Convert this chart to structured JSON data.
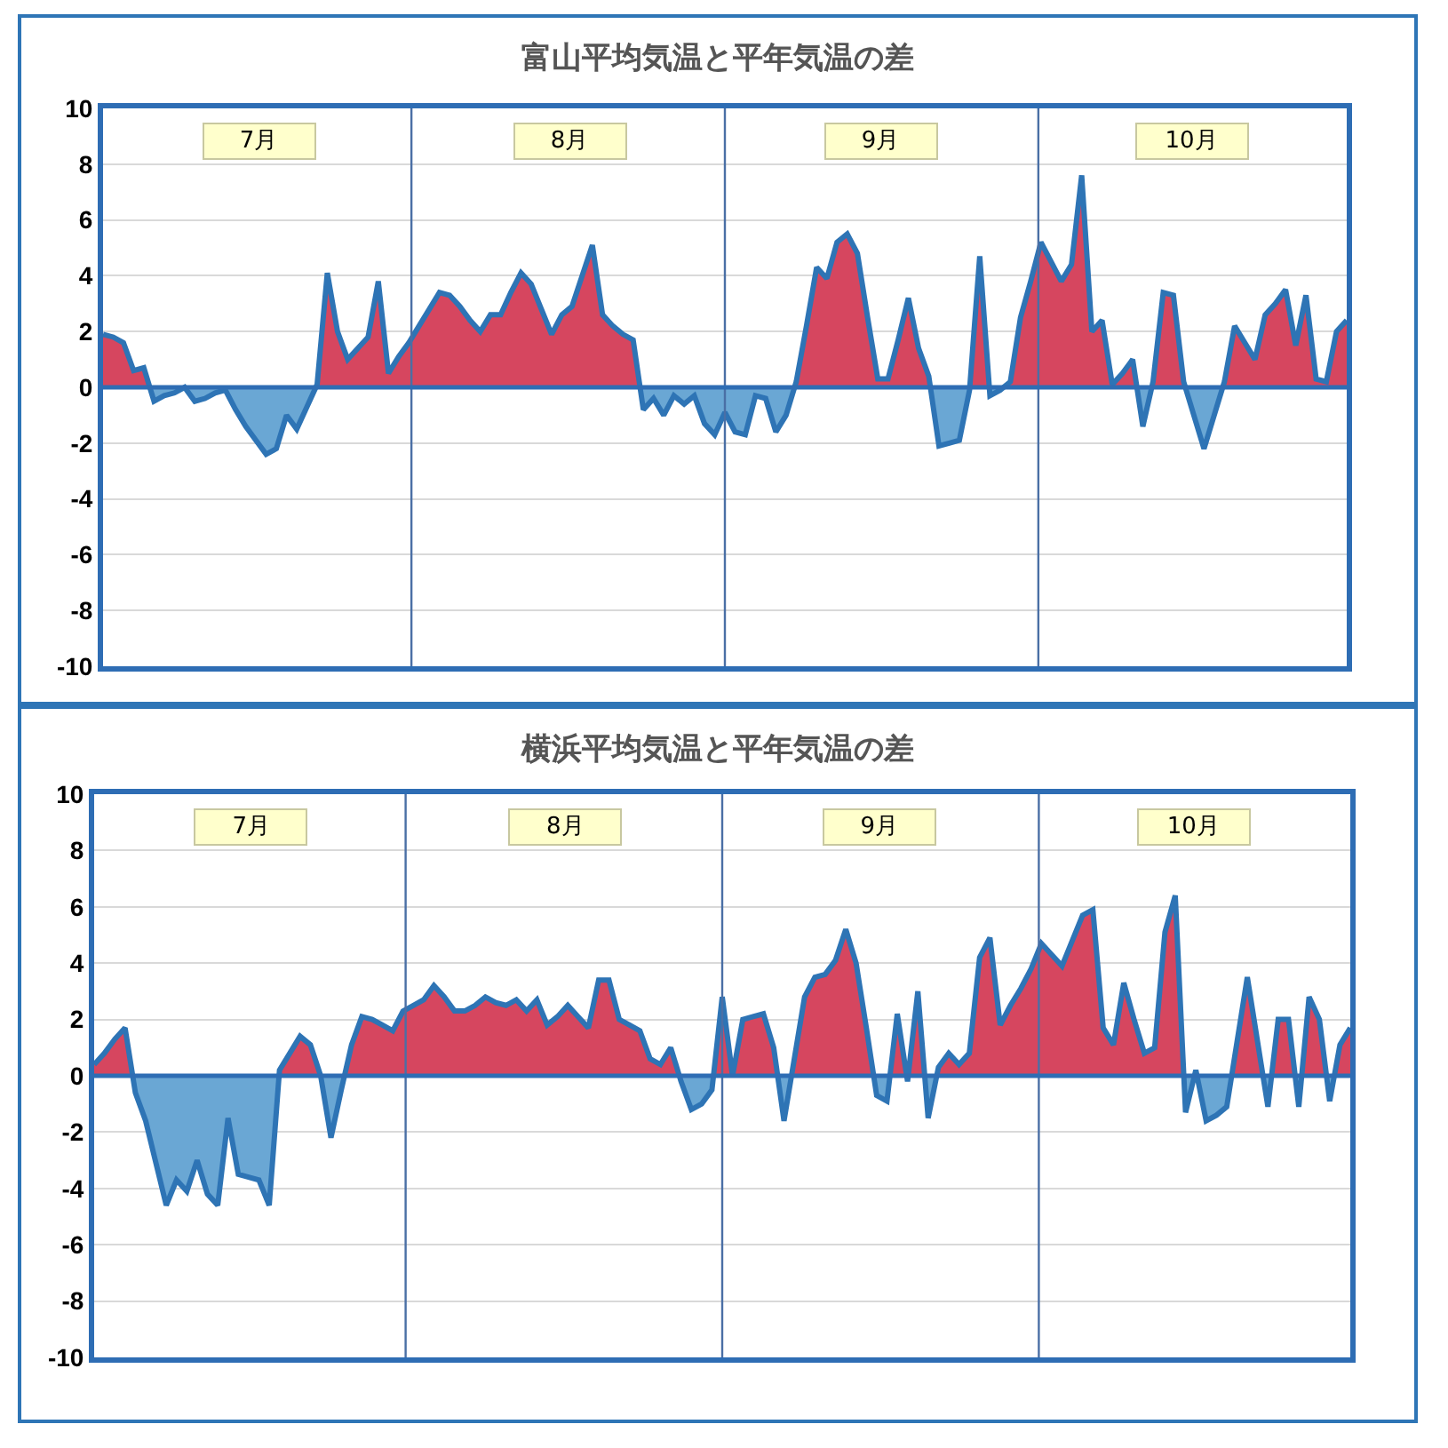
{
  "chart_data": [
    {
      "type": "area",
      "title": "富山平均気温と平年気温の差",
      "color": "#2e74b5",
      "categories": [
        null,
        null,
        null,
        null,
        null,
        null,
        null,
        null,
        null,
        null,
        null,
        null,
        null,
        null,
        null,
        null,
        null,
        null,
        null,
        null,
        null,
        null,
        null,
        null,
        null,
        null,
        null,
        null,
        null,
        null,
        null,
        null,
        null,
        null,
        null,
        null,
        null,
        null,
        null,
        null,
        null,
        null,
        null,
        null,
        null,
        null,
        null,
        null,
        null,
        null,
        null,
        null,
        null,
        null,
        null,
        null,
        null,
        null,
        null,
        null,
        null,
        null,
        null,
        null,
        null,
        null,
        null,
        null,
        null,
        null,
        null,
        null,
        null,
        null,
        null,
        null,
        null,
        null,
        null,
        null,
        null,
        null,
        null,
        null,
        null,
        null,
        null,
        null,
        null,
        null,
        null,
        null,
        null,
        null,
        null,
        null,
        null,
        null,
        null,
        null,
        null,
        null,
        null,
        null,
        null,
        null,
        null,
        null,
        null,
        null,
        null,
        null,
        null,
        null,
        null,
        null,
        null,
        null,
        null,
        null,
        null,
        null,
        null
      ],
      "values": [
        1.9,
        1.8,
        1.6,
        0.6,
        0.7,
        -0.5,
        -0.3,
        -0.2,
        0,
        -0.5,
        -0.4,
        -0.2,
        -0.1,
        -0.8,
        -1.4,
        -1.9,
        -2.4,
        -2.2,
        -1.0,
        -1.5,
        -0.7,
        0.1,
        4.1,
        2.0,
        1.0,
        1.4,
        1.8,
        3.8,
        0.5,
        1.1,
        1.6,
        2.2,
        2.8,
        3.4,
        3.3,
        2.9,
        2.4,
        2.0,
        2.6,
        2.6,
        3.4,
        4.1,
        3.7,
        2.8,
        1.9,
        2.6,
        2.9,
        4.0,
        5.1,
        2.6,
        2.2,
        1.9,
        1.7,
        -0.8,
        -0.4,
        -1.0,
        -0.3,
        -0.6,
        -0.3,
        -1.3,
        -1.7,
        -0.9,
        -1.6,
        -1.7,
        -0.3,
        -0.4,
        -1.6,
        -1.0,
        0.2,
        2.2,
        4.3,
        3.9,
        5.2,
        5.5,
        4.8,
        2.5,
        0.3,
        0.3,
        1.7,
        3.2,
        1.4,
        0.4,
        -2.1,
        -2.0,
        -1.9,
        -0.1,
        4.7,
        -0.3,
        -0.1,
        0.2,
        2.5,
        3.8,
        5.2,
        4.5,
        3.8,
        4.4,
        7.6,
        2.0,
        2.4,
        0.1,
        0.5,
        1.0,
        -1.4,
        0.2,
        3.4,
        3.3,
        0.2,
        -1.0,
        -2.2,
        -1.0,
        0.2,
        2.2,
        1.6,
        1.0,
        2.6,
        3.0,
        3.5,
        1.5,
        3.3,
        0.3,
        0.2,
        2.0,
        2.4
      ],
      "ylim": [
        -10,
        10
      ],
      "yticks": [
        -10,
        -8,
        -6,
        -4,
        -2,
        0,
        2,
        4,
        6,
        8,
        10
      ],
      "grid": "y",
      "tick_labels": "y",
      "ref_lines": [
        {
          "axis": "y",
          "value": 0,
          "color": "#2e6db4"
        }
      ],
      "annotations": [
        "7月",
        "8月",
        "9月",
        "10月"
      ]
    },
    {
      "type": "area",
      "title": "横浜平均気温と平年気温の差",
      "color": "#2e74b5",
      "categories": [
        null,
        null,
        null,
        null,
        null,
        null,
        null,
        null,
        null,
        null,
        null,
        null,
        null,
        null,
        null,
        null,
        null,
        null,
        null,
        null,
        null,
        null,
        null,
        null,
        null,
        null,
        null,
        null,
        null,
        null,
        null,
        null,
        null,
        null,
        null,
        null,
        null,
        null,
        null,
        null,
        null,
        null,
        null,
        null,
        null,
        null,
        null,
        null,
        null,
        null,
        null,
        null,
        null,
        null,
        null,
        null,
        null,
        null,
        null,
        null,
        null,
        null,
        null,
        null,
        null,
        null,
        null,
        null,
        null,
        null,
        null,
        null,
        null,
        null,
        null,
        null,
        null,
        null,
        null,
        null,
        null,
        null,
        null,
        null,
        null,
        null,
        null,
        null,
        null,
        null,
        null,
        null,
        null,
        null,
        null,
        null,
        null,
        null,
        null,
        null,
        null,
        null,
        null,
        null,
        null,
        null,
        null,
        null,
        null,
        null,
        null,
        null,
        null,
        null,
        null,
        null,
        null,
        null,
        null,
        null,
        null,
        null,
        null
      ],
      "values": [
        0.4,
        0.8,
        1.3,
        1.7,
        -0.6,
        -1.6,
        -3.1,
        -4.6,
        -3.7,
        -4.1,
        -3.0,
        -4.2,
        -4.6,
        -1.5,
        -3.5,
        -3.6,
        -3.7,
        -4.6,
        0.2,
        0.8,
        1.4,
        1.1,
        0,
        -2.2,
        -0.5,
        1.1,
        2.1,
        2.0,
        1.8,
        1.6,
        2.3,
        2.5,
        2.7,
        3.2,
        2.8,
        2.3,
        2.3,
        2.5,
        2.8,
        2.6,
        2.5,
        2.7,
        2.3,
        2.7,
        1.8,
        2.1,
        2.5,
        2.1,
        1.7,
        3.4,
        3.4,
        2.0,
        1.8,
        1.6,
        0.6,
        0.4,
        1.0,
        -0.2,
        -1.2,
        -1.0,
        -0.5,
        2.8,
        0,
        2.0,
        2.1,
        2.2,
        1.0,
        -1.6,
        0.6,
        2.8,
        3.5,
        3.6,
        4.1,
        5.2,
        4.0,
        1.7,
        -0.7,
        -0.9,
        2.2,
        -0.2,
        3.0,
        -1.5,
        0.3,
        0.8,
        0.4,
        0.8,
        4.2,
        4.9,
        1.8,
        2.5,
        3.1,
        3.8,
        4.7,
        4.3,
        3.9,
        4.8,
        5.7,
        5.9,
        1.7,
        1.1,
        3.3,
        2.0,
        0.8,
        1.0,
        5.1,
        6.4,
        -1.3,
        0.2,
        -1.6,
        -1.4,
        -1.1,
        1.2,
        3.5,
        1.2,
        -1.1,
        2.0,
        2.0,
        -1.1,
        2.8,
        2.0,
        -0.9,
        1.1,
        1.7
      ],
      "ylim": [
        -10,
        10
      ],
      "yticks": [
        -10,
        -8,
        -6,
        -4,
        -2,
        0,
        2,
        4,
        6,
        8,
        10
      ],
      "grid": "y",
      "tick_labels": "y",
      "ref_lines": [
        {
          "axis": "y",
          "value": 0,
          "color": "#2e6db4"
        }
      ],
      "annotations": [
        "7月",
        "8月",
        "9月",
        "10月"
      ]
    }
  ]
}
